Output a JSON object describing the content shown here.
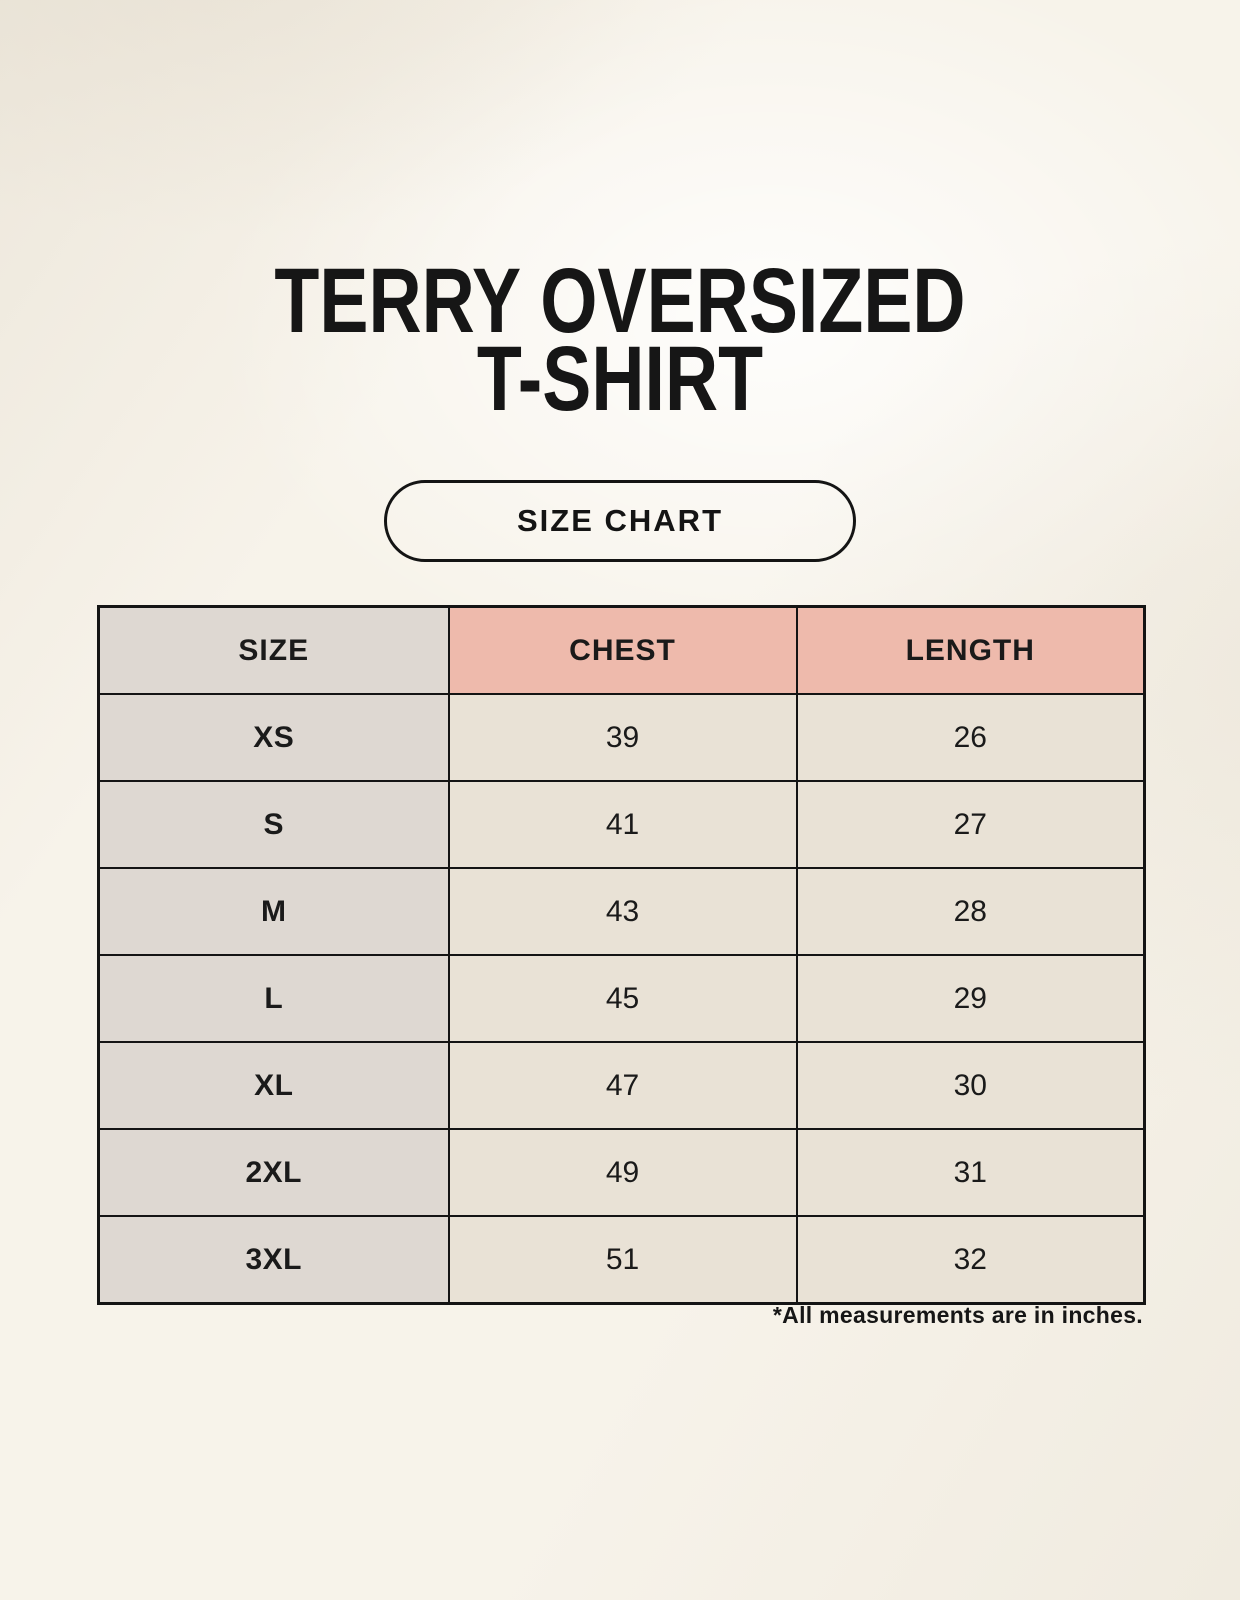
{
  "header": {
    "title_line1": "TERRY OVERSIZED",
    "title_line2": "T-SHIRT"
  },
  "badge": {
    "label": "SIZE CHART"
  },
  "footnote": {
    "text": "*All measurements are in inches."
  },
  "colors": {
    "background": "#f7f3ea",
    "accent_header_bg": "#eebaac",
    "label_column_bg": "#ded8d2",
    "value_cell_bg": "#e9e2d6",
    "table_border": "#141414",
    "text": "#1a1a1a"
  },
  "chart_data": {
    "type": "table",
    "title": "TERRY OVERSIZED T-SHIRT",
    "columns": [
      "SIZE",
      "CHEST",
      "LENGTH"
    ],
    "rows": [
      [
        "XS",
        "39",
        "26"
      ],
      [
        "S",
        "41",
        "27"
      ],
      [
        "M",
        "43",
        "28"
      ],
      [
        "L",
        "45",
        "29"
      ],
      [
        "XL",
        "47",
        "30"
      ],
      [
        "2XL",
        "49",
        "31"
      ],
      [
        "3XL",
        "51",
        "32"
      ]
    ],
    "units_note": "*All measurements are in inches.",
    "layout": "3-column size chart table, header row accent colored, first column label colored"
  }
}
